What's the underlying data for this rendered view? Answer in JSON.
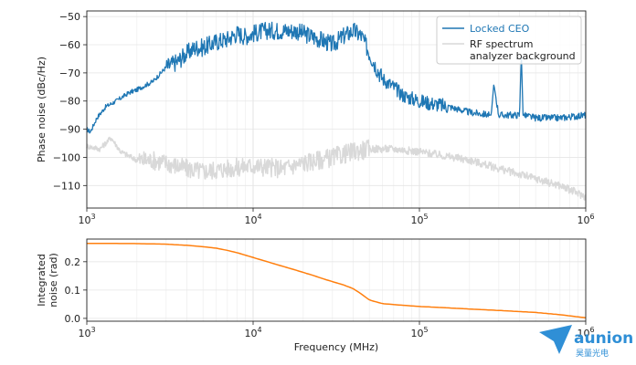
{
  "chart_data": [
    {
      "type": "line",
      "xscale": "log",
      "xlim": [
        1000,
        1000000
      ],
      "ylim": [
        -118,
        -48
      ],
      "xticks": [
        {
          "value": 1000,
          "label": "10^3"
        },
        {
          "value": 10000,
          "label": "10^4"
        },
        {
          "value": 100000,
          "label": "10^5"
        },
        {
          "value": 1000000,
          "label": "10^6"
        }
      ],
      "yticks": [
        -50,
        -60,
        -70,
        -80,
        -90,
        -100,
        -110
      ],
      "ylabel": "Phase noise (dBc/Hz)",
      "grid": true,
      "legend": {
        "placement": "top-right"
      },
      "series": [
        {
          "name": "Locked CEO",
          "color": "#1f77b4",
          "x": [
            1000,
            1050,
            1150,
            1300,
            1500,
            1800,
            2000,
            2500,
            3000,
            3500,
            4000,
            4500,
            5000,
            6000,
            7000,
            8000,
            9000,
            10000,
            12000,
            15000,
            18000,
            20000,
            25000,
            30000,
            35000,
            40000,
            45000,
            50000,
            55000,
            60000,
            70000,
            80000,
            100000,
            150000,
            200000,
            270000,
            280000,
            300000,
            400000,
            410000,
            420000,
            500000,
            700000,
            1000000
          ],
          "y": [
            -90,
            -91,
            -86,
            -82,
            -80,
            -77,
            -76,
            -73,
            -68,
            -66,
            -63,
            -61,
            -61,
            -59,
            -58,
            -56,
            -57,
            -56,
            -55,
            -55,
            -55,
            -56,
            -58,
            -60,
            -57,
            -55,
            -57,
            -63,
            -68,
            -72,
            -75,
            -78,
            -80,
            -82,
            -84,
            -85,
            -74,
            -85,
            -85,
            -63,
            -85,
            -86,
            -86,
            -85
          ]
        },
        {
          "name": "RF spectrum analyzer background",
          "color": "#d9d9d9",
          "x": [
            1000,
            1200,
            1400,
            1600,
            2000,
            2500,
            3000,
            4000,
            5000,
            7000,
            10000,
            15000,
            20000,
            30000,
            40000,
            50000,
            70000,
            100000,
            200000,
            400000,
            700000,
            1000000
          ],
          "y": [
            -96,
            -97,
            -93,
            -98,
            -101,
            -101,
            -102,
            -104,
            -105,
            -104,
            -103,
            -104,
            -102,
            -100,
            -98,
            -97,
            -97,
            -98,
            -101,
            -106,
            -110,
            -114
          ]
        }
      ]
    },
    {
      "type": "line",
      "xscale": "log",
      "xlim": [
        1000,
        1000000
      ],
      "ylim": [
        -0.01,
        0.28
      ],
      "xticks": [
        {
          "value": 1000,
          "label": "10^3"
        },
        {
          "value": 10000,
          "label": "10^4"
        },
        {
          "value": 100000,
          "label": "10^5"
        },
        {
          "value": 1000000,
          "label": "10^6"
        }
      ],
      "yticks": [
        0.0,
        0.1,
        0.2
      ],
      "ytick_labels": [
        "0.0",
        "0.1",
        "0.2"
      ],
      "xlabel": "Frequency (MHz)",
      "ylabel_lines": [
        "Integrated",
        "noise (rad)"
      ],
      "grid": true,
      "series": [
        {
          "color": "#ff7f0e",
          "x": [
            1000,
            2000,
            3000,
            4000,
            5000,
            6000,
            7000,
            8000,
            10000,
            13000,
            17000,
            22000,
            28000,
            35000,
            40000,
            45000,
            50000,
            60000,
            80000,
            100000,
            150000,
            200000,
            300000,
            400000,
            500000,
            700000,
            1000000
          ],
          "y": [
            0.265,
            0.264,
            0.262,
            0.258,
            0.253,
            0.248,
            0.24,
            0.232,
            0.215,
            0.195,
            0.175,
            0.155,
            0.135,
            0.118,
            0.105,
            0.085,
            0.065,
            0.052,
            0.046,
            0.042,
            0.037,
            0.033,
            0.028,
            0.024,
            0.021,
            0.013,
            0.002
          ]
        }
      ]
    }
  ],
  "watermark": {
    "brand": "aunion",
    "subtitle": "昊量光电"
  }
}
